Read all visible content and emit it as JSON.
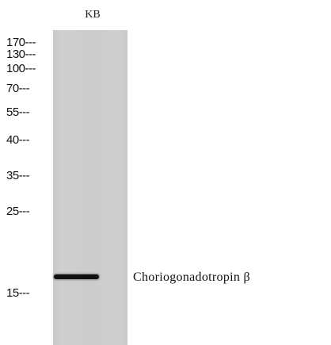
{
  "blot": {
    "lane_label": "KB",
    "band_label": "Choriogonadotropin β",
    "markers": [
      {
        "label": "170---"
      },
      {
        "label": "130---"
      },
      {
        "label": "100---"
      },
      {
        "label": "70---"
      },
      {
        "label": "55---"
      },
      {
        "label": "40---"
      },
      {
        "label": "35---"
      },
      {
        "label": "25---"
      },
      {
        "label": "15---"
      }
    ]
  }
}
